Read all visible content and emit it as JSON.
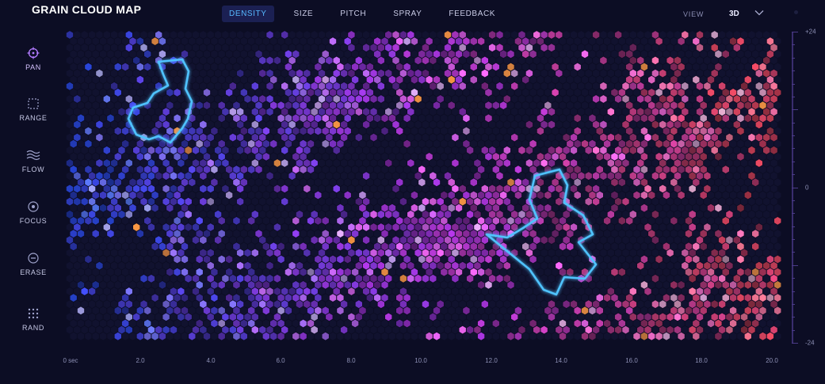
{
  "app": {
    "title": "GRAIN CLOUD MAP"
  },
  "tabs": [
    {
      "label": "DENSITY",
      "active": true
    },
    {
      "label": "SIZE",
      "active": false
    },
    {
      "label": "PITCH",
      "active": false
    },
    {
      "label": "SPRAY",
      "active": false
    },
    {
      "label": "FEEDBACK",
      "active": false
    }
  ],
  "view": {
    "label": "VIEW",
    "value": "3D"
  },
  "tools": [
    {
      "label": "PAN",
      "icon": "crosshair-icon",
      "active": true
    },
    {
      "label": "RANGE",
      "icon": "dashed-square-icon",
      "active": false
    },
    {
      "label": "FLOW",
      "icon": "wave-icon",
      "active": false
    },
    {
      "label": "FOCUS",
      "icon": "target-icon",
      "active": false
    },
    {
      "label": "ERASE",
      "icon": "minus-circle-icon",
      "active": false
    },
    {
      "label": "RAND",
      "icon": "dot-grid-icon",
      "active": false
    }
  ],
  "x_axis": {
    "ticks": [
      "0 sec",
      "2.0",
      "4.0",
      "6.0",
      "8.0",
      "10.0",
      "12.0",
      "14.0",
      "16.0",
      "18.0",
      "20.0"
    ]
  },
  "y_axis": {
    "ticks": [
      "+24",
      "0",
      "-24"
    ]
  },
  "colors": {
    "background": "#0c0d24",
    "accent": "#56b8ff",
    "density_low": "#2f52ff",
    "density_mid": "#c23cff",
    "density_high": "#ff4f6a",
    "hot_spot": "#ff9a45",
    "selection_outline": "#4fc3ff"
  }
}
